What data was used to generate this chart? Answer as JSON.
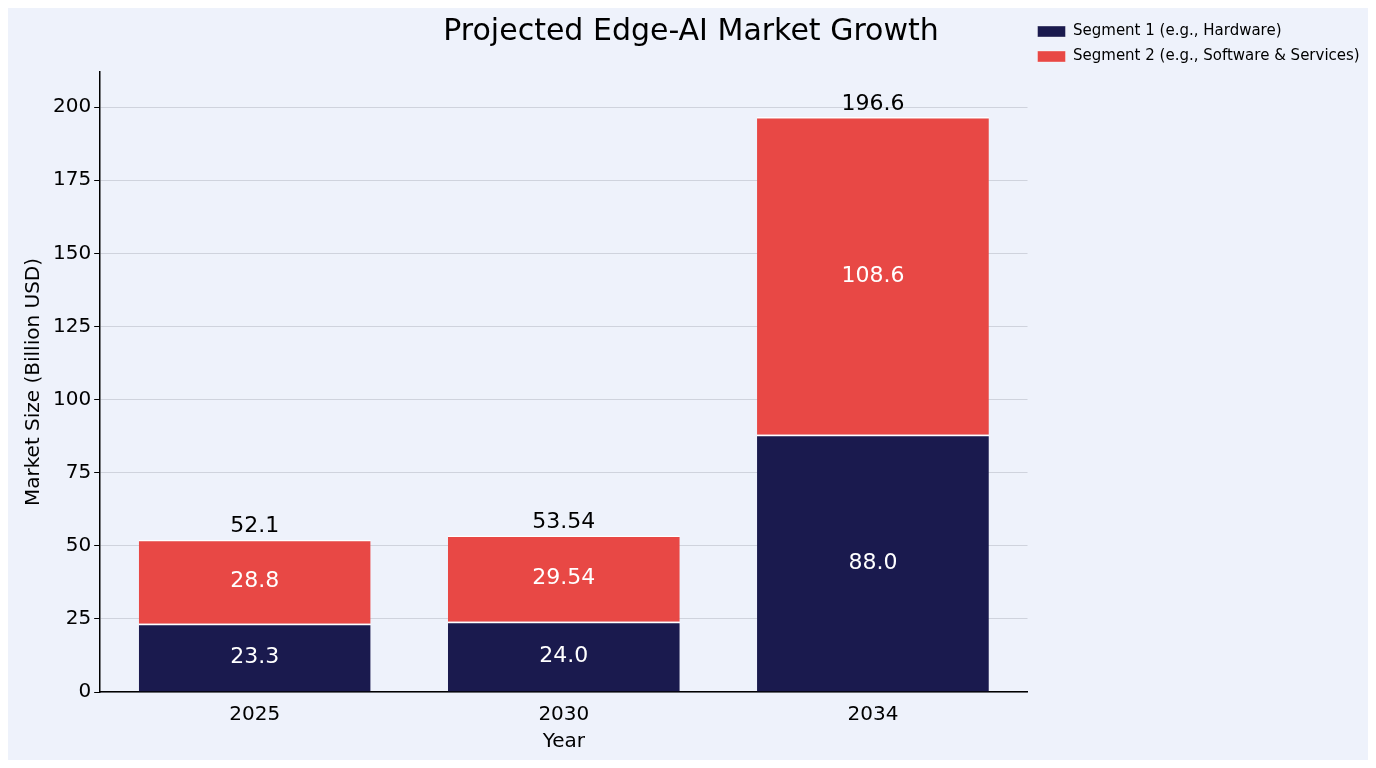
{
  "chart_data": {
    "type": "bar",
    "title": "Projected Edge-AI Market Growth",
    "xlabel": "Year",
    "ylabel": "Market Size (Billion USD)",
    "categories": [
      "2025",
      "2030",
      "2034"
    ],
    "series": [
      {
        "name": "Segment 1 (e.g., Hardware)",
        "color": "#1a1a4e",
        "values": [
          23.3,
          24.0,
          88.0
        ],
        "value_labels": [
          "23.3",
          "24.0",
          "88.0"
        ]
      },
      {
        "name": "Segment 2 (e.g., Software & Services)",
        "color": "#e84845",
        "values": [
          28.8,
          29.54,
          108.6
        ],
        "value_labels": [
          "28.8",
          "29.54",
          "108.6"
        ]
      }
    ],
    "stacked": true,
    "totals": [
      "52.1",
      "53.54",
      "196.6"
    ],
    "ylim": [
      0,
      212
    ],
    "yticks": [
      0,
      25,
      50,
      75,
      100,
      125,
      150,
      175,
      200
    ],
    "grid": "y",
    "legend": "top right"
  }
}
